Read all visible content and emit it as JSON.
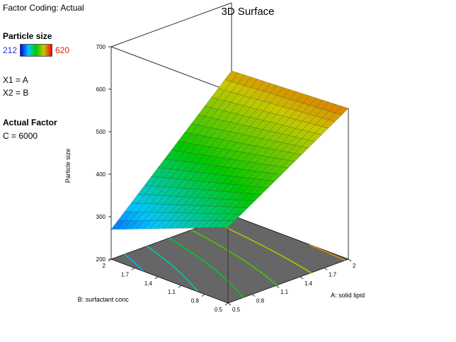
{
  "header": {
    "factor_coding": "Factor Coding: Actual"
  },
  "legend": {
    "response_name": "Particle size",
    "min": "212",
    "max": "620",
    "colors": [
      "#0000ff",
      "#00c8ff",
      "#00c800",
      "#c8c800",
      "#ff0000"
    ]
  },
  "factors": {
    "x1": "X1 = A",
    "x2": "X2 = B"
  },
  "actual_factor": {
    "title": "Actual Factor",
    "value": "C = 6000"
  },
  "chart_data": {
    "type": "surface",
    "title": "3D Surface",
    "zlabel": "Particle size",
    "xlabel": "A: solid lipid",
    "ylabel": "B: surfactant conc",
    "x_ticks": [
      "0.5",
      "0.8",
      "1.1",
      "1.4",
      "1.7",
      "2"
    ],
    "y_ticks": [
      "0.5",
      "0.8",
      "1.1",
      "1.4",
      "1.7",
      "2"
    ],
    "z_ticks": [
      "200",
      "300",
      "400",
      "500",
      "600",
      "700"
    ],
    "xlim": [
      0.5,
      2
    ],
    "ylim": [
      0.5,
      2
    ],
    "zlim": [
      200,
      700
    ],
    "z_at_corners": {
      "x0_y0": 378,
      "x0_y1": 270,
      "x1_y0": 555,
      "x1_y1": 540
    },
    "contour_levels": [
      300,
      350,
      400,
      450,
      500,
      550
    ]
  }
}
